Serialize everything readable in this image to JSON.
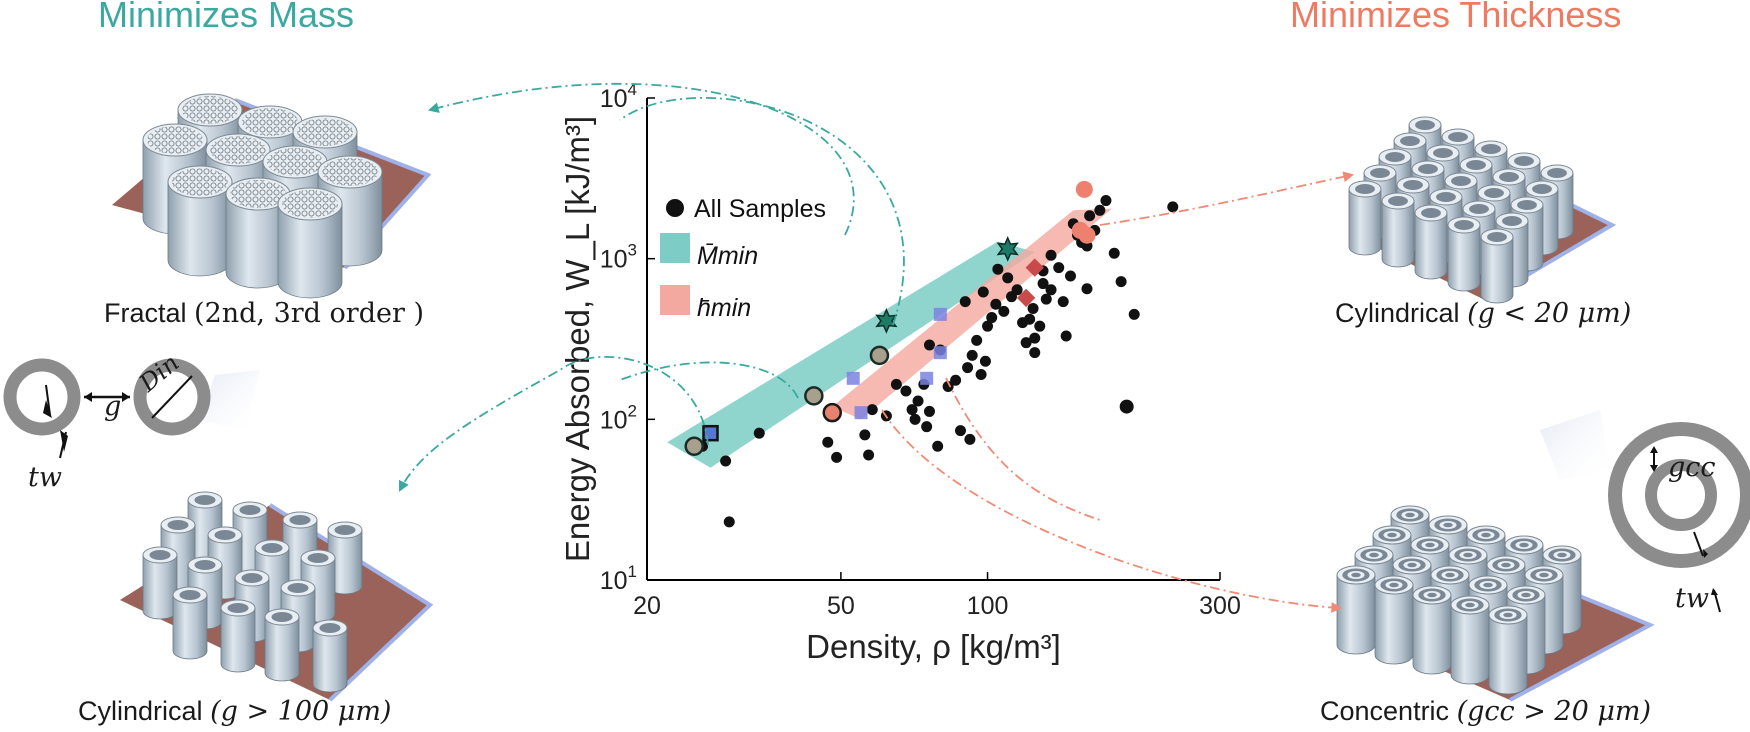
{
  "headings": {
    "left": "Minimizes Mass",
    "right": "Minimizes Thickness"
  },
  "captions": {
    "fractal": {
      "label": "Fractal",
      "detail": "(2nd, 3rd order )"
    },
    "cyl_large": {
      "label": "Cylindrical",
      "detail": "(g > 100 μm)"
    },
    "cyl_small": {
      "label": "Cylindrical",
      "detail": "(g < 20 μm)"
    },
    "concentric": {
      "label": "Concentric",
      "detail": "(gcc > 20 μm)"
    }
  },
  "symbols": {
    "g": "g",
    "din": "Din",
    "tw": "tw",
    "gcc": "gcc"
  },
  "colors": {
    "teal": "#3aa9a0",
    "salmon": "#ef7a62",
    "teal_band": "#7dccc5",
    "salmon_band": "#f4a9a0",
    "substrate": "#9a6258"
  },
  "chart_data": {
    "type": "scatter",
    "xlabel": "Density, ρ [kg/m³]",
    "ylabel": "Energy Absorbed, W_L [kJ/m³]",
    "xscale": "log",
    "yscale": "log",
    "xlim": [
      20,
      300
    ],
    "ylim": [
      10,
      10000
    ],
    "xticks": [
      "20",
      "50",
      "100",
      "300"
    ],
    "yticks": [
      "10^1",
      "10^2",
      "10^3",
      "10^4"
    ],
    "legend": {
      "placement": "top-left",
      "entries": [
        "All Samples",
        "M̄min",
        "h̄min"
      ]
    },
    "series": [
      {
        "name": "All Samples",
        "points": [
          [
            26,
            68
          ],
          [
            29,
            55
          ],
          [
            29.5,
            23
          ],
          [
            34,
            82
          ],
          [
            47,
            72
          ],
          [
            49,
            58
          ],
          [
            58,
            115
          ],
          [
            56,
            80
          ],
          [
            57,
            60
          ],
          [
            62,
            105
          ],
          [
            65,
            165
          ],
          [
            68,
            150
          ],
          [
            70,
            115
          ],
          [
            72,
            130
          ],
          [
            71,
            100
          ],
          [
            74,
            165
          ],
          [
            75,
            90
          ],
          [
            76,
            112
          ],
          [
            79,
            68
          ],
          [
            83,
            160
          ],
          [
            86,
            175
          ],
          [
            88,
            85
          ],
          [
            91,
            210
          ],
          [
            92,
            75
          ],
          [
            93,
            250
          ],
          [
            95,
            310
          ],
          [
            97,
            190
          ],
          [
            99,
            230
          ],
          [
            100,
            380
          ],
          [
            102,
            430
          ],
          [
            104,
            520
          ],
          [
            108,
            470
          ],
          [
            112,
            580
          ],
          [
            115,
            640
          ],
          [
            118,
            400
          ],
          [
            120,
            300
          ],
          [
            122,
            420
          ],
          [
            124,
            490
          ],
          [
            128,
            380
          ],
          [
            132,
            560
          ],
          [
            135,
            640
          ],
          [
            140,
            880
          ],
          [
            143,
            540
          ],
          [
            148,
            780
          ],
          [
            150,
            1650
          ],
          [
            153,
            1400
          ],
          [
            156,
            1260
          ],
          [
            160,
            1200
          ],
          [
            162,
            1850
          ],
          [
            166,
            1500
          ],
          [
            170,
            2000
          ],
          [
            175,
            2300
          ],
          [
            182,
            1080
          ],
          [
            188,
            720
          ],
          [
            200,
            450
          ],
          [
            240,
            2100
          ],
          [
            125,
            260
          ],
          [
            125,
            320
          ],
          [
            130,
            700
          ],
          [
            110,
            760
          ],
          [
            135,
            1050
          ],
          [
            160,
            650
          ],
          [
            145,
            330
          ],
          [
            130,
            840
          ],
          [
            90,
            540
          ],
          [
            80,
            270
          ],
          [
            76,
            290
          ],
          [
            98,
            620
          ],
          [
            105,
            860
          ],
          [
            193,
            120
          ]
        ]
      },
      {
        "name": "M̄min",
        "points": [
          [
            25,
            68
          ],
          [
            27,
            82
          ],
          [
            44,
            140
          ],
          [
            60,
            250
          ],
          [
            62,
            410
          ],
          [
            110,
            1150
          ]
        ]
      },
      {
        "name": "h̄min",
        "points": [
          [
            48,
            110
          ],
          [
            55,
            110
          ],
          [
            53,
            180
          ],
          [
            75,
            180
          ],
          [
            80,
            260
          ],
          [
            80,
            450
          ],
          [
            120,
            570
          ],
          [
            125,
            880
          ],
          [
            155,
            1500
          ],
          [
            160,
            1400
          ],
          [
            158,
            2700
          ]
        ]
      }
    ],
    "bands": {
      "M̄min": [
        [
          22,
          72
        ],
        [
          105,
          1280
        ],
        [
          125,
          1100
        ],
        [
          27,
          50
        ]
      ],
      "h̄min": [
        [
          48,
          120
        ],
        [
          150,
          2000
        ],
        [
          180,
          2050
        ],
        [
          55,
          100
        ]
      ]
    }
  }
}
